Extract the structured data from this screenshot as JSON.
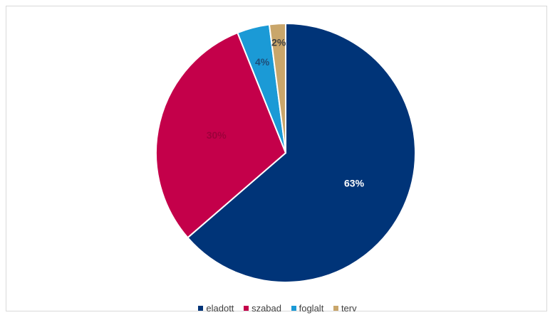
{
  "chart_data": {
    "type": "pie",
    "categories": [
      "eladott",
      "szabad",
      "foglalt",
      "terv"
    ],
    "values": [
      63,
      30,
      4,
      2
    ],
    "labels": [
      "63%",
      "30%",
      "4%",
      "2%"
    ],
    "colors": [
      "#003478",
      "#C4004A",
      "#1B9AD6",
      "#C9A66B"
    ],
    "label_colors": [
      "#ffffff",
      "#9E003B",
      "#1F4E79",
      "#404040"
    ],
    "legend_position": "bottom"
  }
}
